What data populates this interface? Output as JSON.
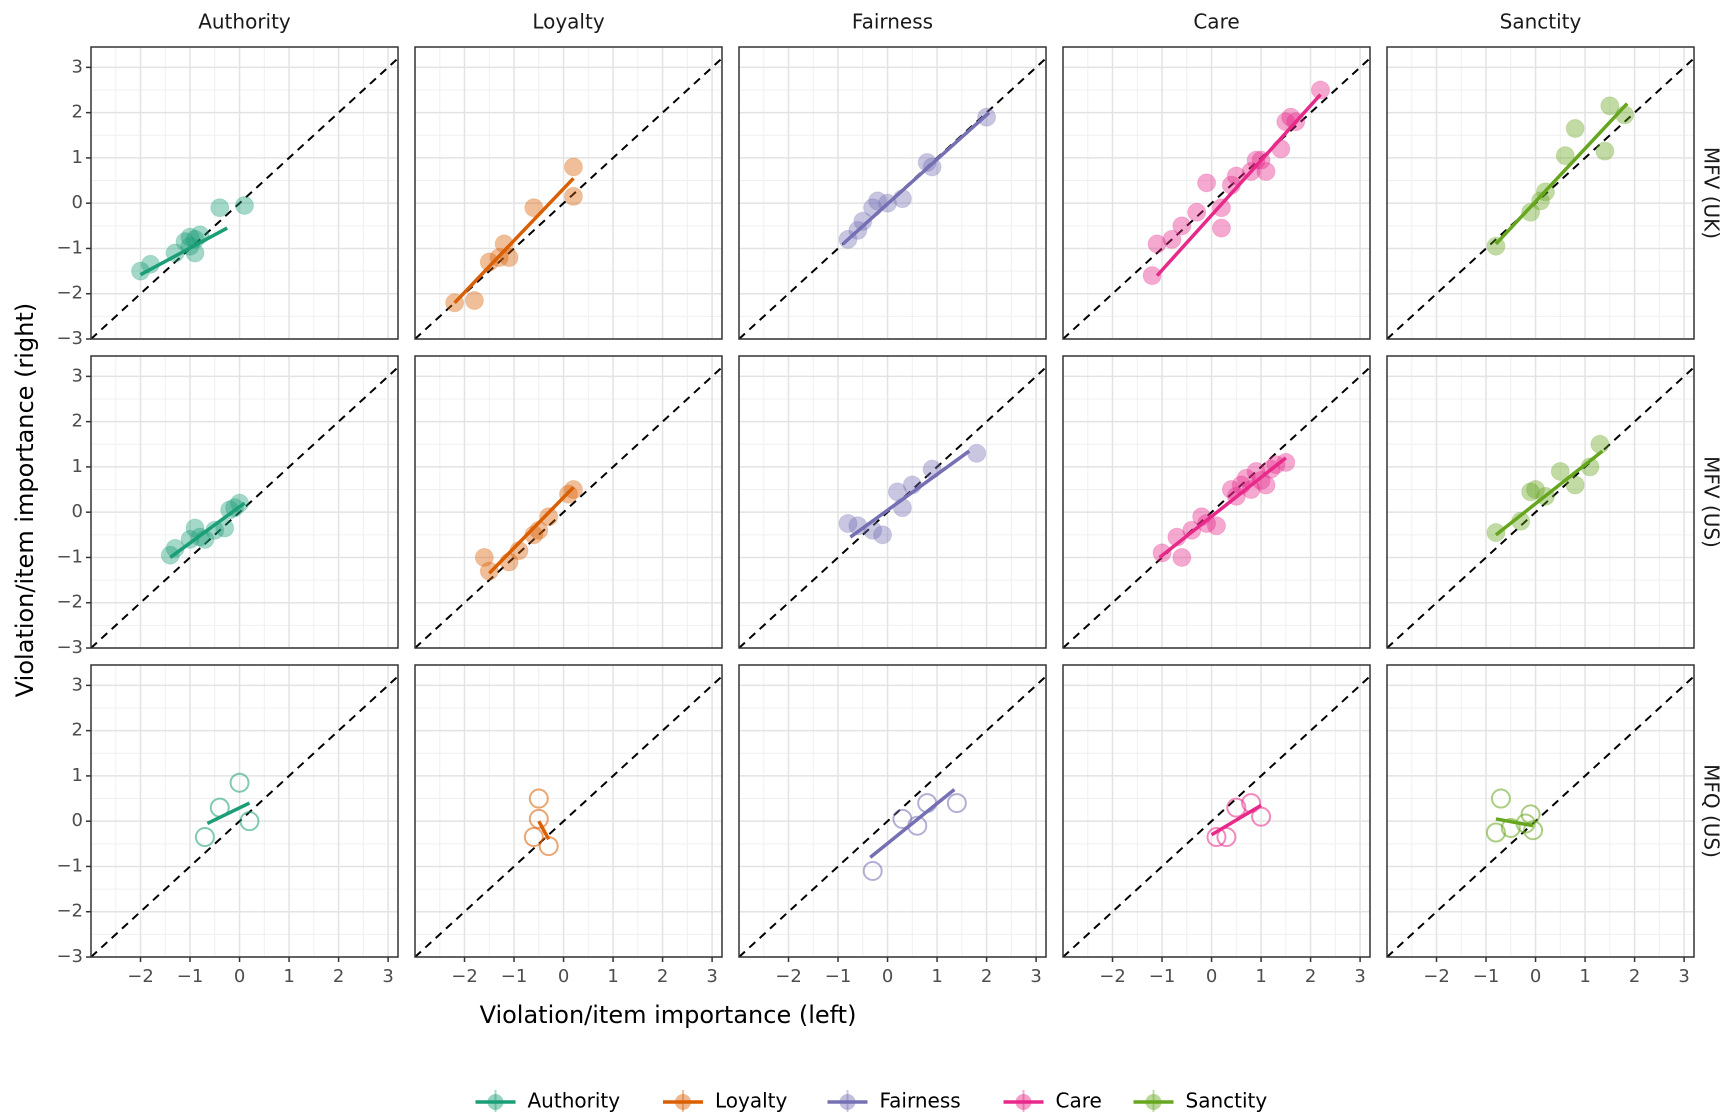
{
  "chart_data": {
    "type": "scatter",
    "columns": [
      "Authority",
      "Loyalty",
      "Fairness",
      "Care",
      "Sanctity"
    ],
    "rows": [
      "MFV (UK)",
      "MFV (US)",
      "MFQ (US)"
    ],
    "open_markers": [
      false,
      false,
      true
    ],
    "xlabel": "Violation/item importance (left)",
    "ylabel": "Violation/item importance (right)",
    "xlim": [
      -3,
      3.2
    ],
    "ylim": [
      -3,
      3.45
    ],
    "xticks": [
      {
        "value": -2,
        "label": "−2"
      },
      {
        "value": -1,
        "label": "−1"
      },
      0,
      1,
      2,
      3
    ],
    "yticks": [
      {
        "value": -3,
        "label": "−3"
      },
      {
        "value": -2,
        "label": "−2"
      },
      {
        "value": -1,
        "label": "−1"
      },
      0,
      1,
      2,
      3
    ],
    "grid": true,
    "identity_line": true,
    "legend": "bottom",
    "series": [
      {
        "name": "Authority",
        "color": "#1b9e77",
        "panels": [
          {
            "x": [
              -2,
              -1.8,
              -1.3,
              -1.1,
              -1,
              -0.9,
              -0.9,
              -0.8,
              -0.4,
              0.1,
              -1
            ],
            "y": [
              -1.5,
              -1.35,
              -1.1,
              -0.85,
              -0.75,
              -1.1,
              -0.8,
              -0.7,
              -0.1,
              -0.05,
              -0.95
            ],
            "fit_x": [
              -2,
              -0.25
            ],
            "fit_y": [
              -1.58,
              -0.55
            ]
          },
          {
            "x": [
              -1.4,
              -1.3,
              -1,
              -0.9,
              -0.8,
              -0.7,
              -0.5,
              -0.3,
              -0.2,
              0,
              -0.1
            ],
            "y": [
              -0.95,
              -0.8,
              -0.6,
              -0.35,
              -0.55,
              -0.6,
              -0.4,
              -0.35,
              0.05,
              0.2,
              0.1
            ],
            "fit_x": [
              -1.4,
              0.1
            ],
            "fit_y": [
              -1,
              0.2
            ]
          },
          {
            "x": [
              -0.7,
              -0.4,
              0,
              0.2
            ],
            "y": [
              -0.35,
              0.3,
              0.85,
              0
            ],
            "fit_x": [
              -0.65,
              0.2
            ],
            "fit_y": [
              -0.05,
              0.4
            ]
          }
        ]
      },
      {
        "name": "Loyalty",
        "color": "#d95f02",
        "panels": [
          {
            "x": [
              -2.2,
              -1.8,
              -1.5,
              -1.3,
              -1.2,
              -1.1,
              -0.6,
              0.2,
              0.2
            ],
            "y": [
              -2.2,
              -2.15,
              -1.3,
              -1.2,
              -0.9,
              -1.2,
              -0.1,
              0.8,
              0.15
            ],
            "fit_x": [
              -2.2,
              0.2
            ],
            "fit_y": [
              -2.2,
              0.55
            ]
          },
          {
            "x": [
              -1.6,
              -1.5,
              -1.1,
              -0.9,
              -0.6,
              -0.5,
              -0.3,
              0.1,
              0.2
            ],
            "y": [
              -1,
              -1.3,
              -1.1,
              -0.85,
              -0.5,
              -0.4,
              -0.1,
              0.4,
              0.5
            ],
            "fit_x": [
              -1.5,
              0.2
            ],
            "fit_y": [
              -1.35,
              0.55
            ]
          },
          {
            "x": [
              -0.5,
              -0.5,
              -0.6,
              -0.3
            ],
            "y": [
              0.5,
              0.05,
              -0.35,
              -0.55
            ],
            "fit_x": [
              -0.5,
              -0.3
            ],
            "fit_y": [
              0,
              -0.4
            ]
          }
        ]
      },
      {
        "name": "Fairness",
        "color": "#7570b3",
        "panels": [
          {
            "x": [
              -0.8,
              -0.6,
              -0.5,
              -0.3,
              -0.2,
              0,
              0.3,
              0.8,
              0.9,
              2
            ],
            "y": [
              -0.8,
              -0.6,
              -0.4,
              -0.1,
              0.05,
              0,
              0.1,
              0.9,
              0.8,
              1.9
            ],
            "fit_x": [
              -0.9,
              2.05
            ],
            "fit_y": [
              -0.9,
              2
            ]
          },
          {
            "x": [
              -0.8,
              -0.6,
              -0.3,
              -0.1,
              0.2,
              0.3,
              0.5,
              0.9,
              1.8
            ],
            "y": [
              -0.25,
              -0.3,
              -0.4,
              -0.5,
              0.45,
              0.1,
              0.6,
              0.95,
              1.3
            ],
            "fit_x": [
              -0.75,
              1.65
            ],
            "fit_y": [
              -0.55,
              1.35
            ]
          },
          {
            "x": [
              -0.3,
              0.3,
              0.6,
              0.8,
              1.4
            ],
            "y": [
              -1.1,
              0.05,
              -0.1,
              0.4,
              0.4
            ],
            "fit_x": [
              -0.35,
              1.35
            ],
            "fit_y": [
              -0.8,
              0.7
            ]
          }
        ]
      },
      {
        "name": "Care",
        "color": "#e7298a",
        "panels": [
          {
            "x": [
              -1.2,
              -1.1,
              -0.8,
              -0.6,
              -0.3,
              -0.1,
              0.2,
              0.2,
              0.4,
              0.5,
              0.8,
              0.9,
              1,
              1.1,
              1.4,
              1.5,
              1.6,
              1.7,
              2.2
            ],
            "y": [
              -1.6,
              -0.9,
              -0.8,
              -0.5,
              -0.2,
              0.45,
              -0.1,
              -0.55,
              0.4,
              0.6,
              0.7,
              0.95,
              0.95,
              0.7,
              1.2,
              1.8,
              1.9,
              1.8,
              2.5
            ],
            "fit_x": [
              -1.1,
              2.2
            ],
            "fit_y": [
              -1.6,
              2.4
            ]
          },
          {
            "x": [
              -1,
              -0.7,
              -0.6,
              -0.4,
              -0.2,
              -0.1,
              0.1,
              0.4,
              0.5,
              0.6,
              0.8,
              0.9,
              1,
              1.1,
              1.3,
              1.5,
              1.2,
              0.7
            ],
            "y": [
              -0.9,
              -0.55,
              -1,
              -0.4,
              -0.1,
              -0.25,
              -0.3,
              0.5,
              0.35,
              0.6,
              0.5,
              0.9,
              0.7,
              0.6,
              1.05,
              1.1,
              0.95,
              0.75
            ],
            "fit_x": [
              -1.05,
              1.5
            ],
            "fit_y": [
              -1,
              1.2
            ]
          },
          {
            "x": [
              0.1,
              0.3,
              0.5,
              0.8,
              1
            ],
            "y": [
              -0.35,
              -0.35,
              0.3,
              0.4,
              0.1
            ],
            "fit_x": [
              0,
              1
            ],
            "fit_y": [
              -0.3,
              0.35
            ]
          }
        ]
      },
      {
        "name": "Sanctity",
        "color": "#66a61e",
        "panels": [
          {
            "x": [
              -0.8,
              -0.1,
              0.1,
              0.2,
              0.6,
              0.8,
              1.4,
              1.5,
              1.8
            ],
            "y": [
              -0.95,
              -0.2,
              0.05,
              0.25,
              1.05,
              1.65,
              1.15,
              2.15,
              1.95
            ],
            "fit_x": [
              -0.8,
              1.85
            ],
            "fit_y": [
              -0.9,
              2.2
            ]
          },
          {
            "x": [
              -0.8,
              -0.3,
              -0.1,
              0,
              0.2,
              0.5,
              0.8,
              1.1,
              1.3
            ],
            "y": [
              -0.45,
              -0.2,
              0.45,
              0.5,
              0.35,
              0.9,
              0.6,
              1,
              1.5
            ],
            "fit_x": [
              -0.8,
              1.35
            ],
            "fit_y": [
              -0.5,
              1.35
            ]
          },
          {
            "x": [
              -0.7,
              -0.8,
              -0.5,
              -0.2,
              -0.1,
              -0.05
            ],
            "y": [
              0.5,
              -0.25,
              -0.15,
              -0.05,
              0.15,
              -0.2
            ],
            "fit_x": [
              -0.8,
              -0.05
            ],
            "fit_y": [
              0.05,
              -0.1
            ]
          }
        ]
      }
    ]
  }
}
